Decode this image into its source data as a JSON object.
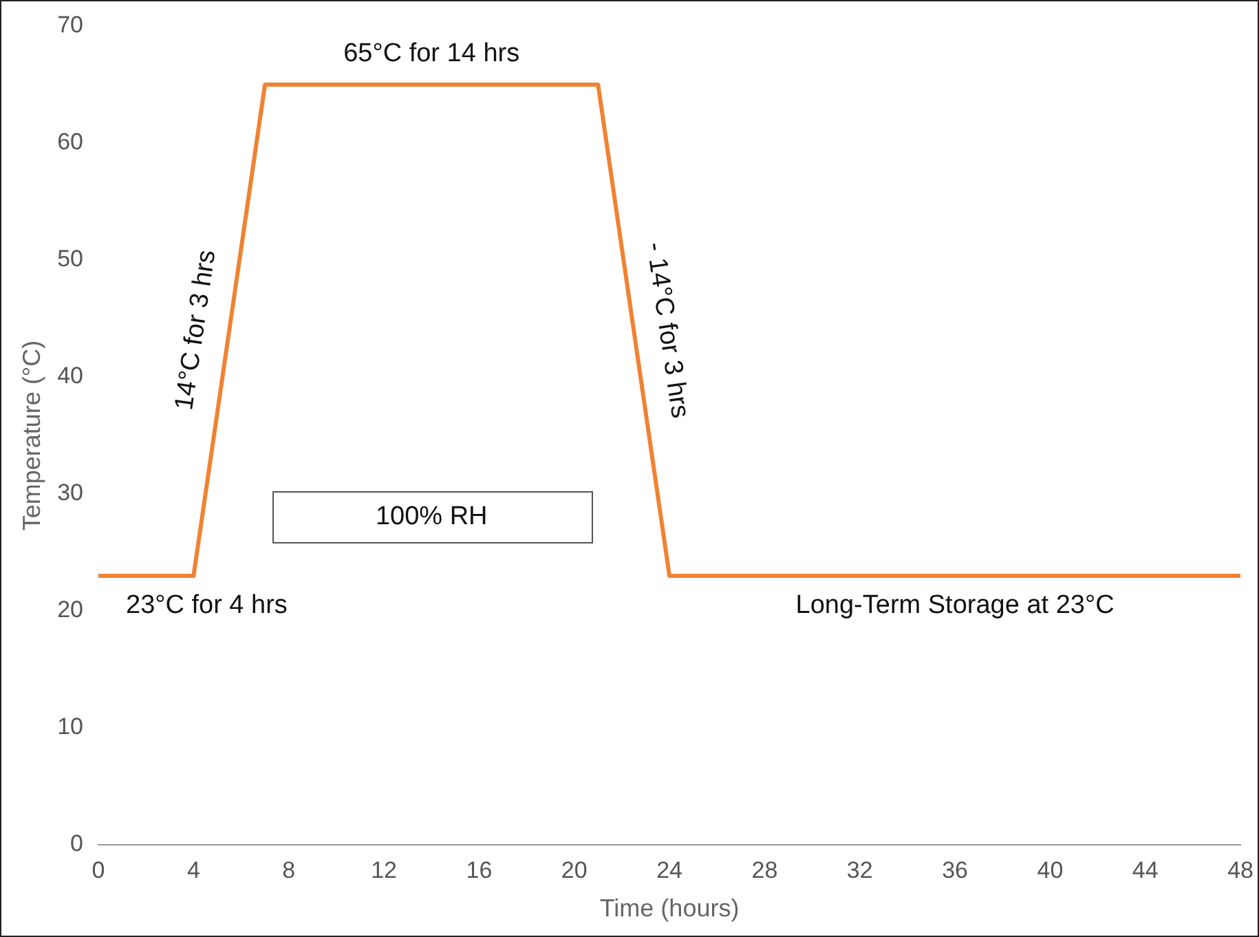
{
  "chart_data": {
    "type": "line",
    "xlabel": "Time (hours)",
    "ylabel": "Temperature (°C)",
    "x": [
      0,
      4,
      7,
      21,
      24,
      48
    ],
    "series": [
      {
        "color": "#f08232",
        "values": [
          23,
          23,
          65,
          65,
          23,
          23
        ]
      }
    ],
    "xlim": [
      0,
      48
    ],
    "xticks": [
      0,
      4,
      8,
      12,
      16,
      20,
      24,
      28,
      32,
      36,
      40,
      44,
      48
    ],
    "ylim": [
      0,
      70
    ],
    "yticks": [
      0,
      10,
      20,
      30,
      40,
      50,
      60,
      70
    ],
    "grid": false,
    "legend": false,
    "marker": "none",
    "line_style": "solid",
    "annotations": [
      "23°C for 4 hrs",
      "14°C for 3 hrs",
      "65°C for 14 hrs",
      "- 14°C for 3 hrs",
      "Long-Term Storage at 23°C",
      "100% RH"
    ]
  }
}
